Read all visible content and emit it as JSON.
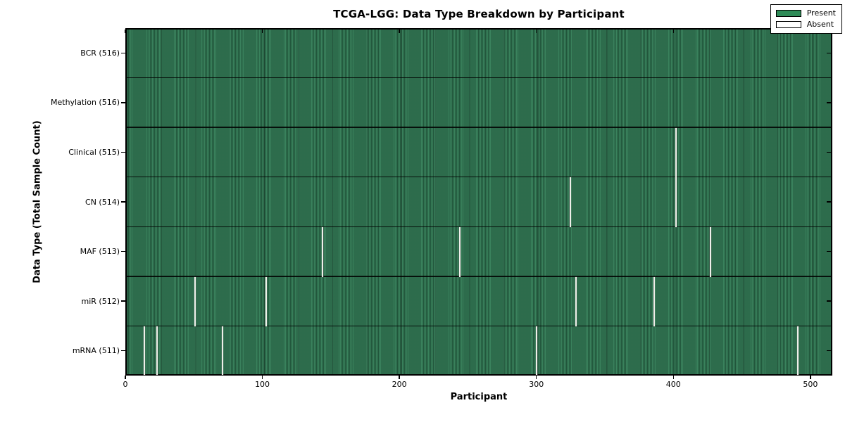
{
  "chart_data": {
    "type": "heatmap",
    "title": "TCGA-LGG: Data Type Breakdown by Participant",
    "xlabel": "Participant",
    "ylabel": "Data Type (Total Sample Count)",
    "x_ticks": [
      0,
      100,
      200,
      300,
      400,
      500
    ],
    "xlim": [
      0,
      516
    ],
    "n_participants": 516,
    "grid": false,
    "rows": [
      {
        "data_type": "BCR",
        "label": "BCR (516)",
        "total": 516,
        "absent_participants": []
      },
      {
        "data_type": "Methylation",
        "label": "Methylation (516)",
        "total": 516,
        "absent_participants": []
      },
      {
        "data_type": "Clinical",
        "label": "Clinical (515)",
        "total": 515,
        "absent_participants": [
          402
        ]
      },
      {
        "data_type": "CN",
        "label": "CN (514)",
        "total": 514,
        "absent_participants": [
          325,
          402
        ]
      },
      {
        "data_type": "MAF",
        "label": "MAF (513)",
        "total": 513,
        "absent_participants": [
          144,
          244,
          427
        ]
      },
      {
        "data_type": "miR",
        "label": "miR (512)",
        "total": 512,
        "absent_participants": [
          51,
          103,
          329,
          386
        ]
      },
      {
        "data_type": "mRNA",
        "label": "mRNA (511)",
        "total": 511,
        "absent_participants": [
          14,
          23,
          71,
          300,
          491
        ]
      }
    ],
    "legend": {
      "position": "upper right",
      "entries": [
        {
          "label": "Present",
          "color": "#2E8B57"
        },
        {
          "label": "Absent",
          "color": "#FFFFFF"
        }
      ]
    },
    "colors": {
      "present": "#2E8B57",
      "absent": "#FFFFFF",
      "axis_and_text": "#000000",
      "background": "#FFFFFF"
    }
  }
}
